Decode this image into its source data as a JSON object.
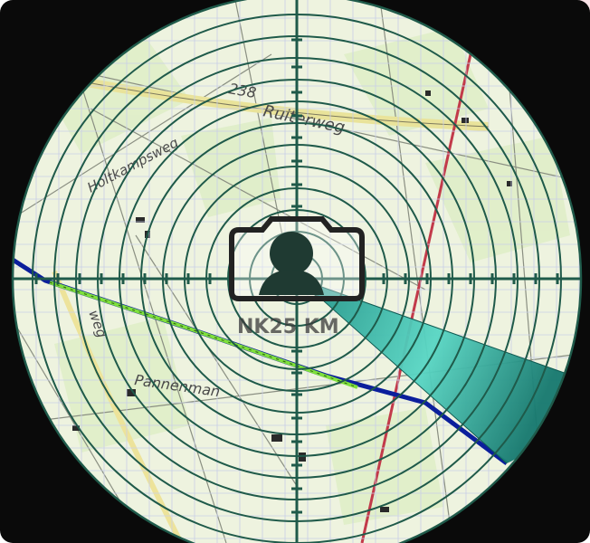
{
  "map": {
    "labels": {
      "road_number": "238",
      "street_top": "Ruiterweg",
      "street_left": "Holtkampsweg",
      "street_lower_left": "weg",
      "place": "Pannenman"
    },
    "stamp_text": "NK25 KM",
    "rings_visible": 12,
    "colors": {
      "background": "#0a0a0a",
      "map_base": "#eef3df",
      "grid": "#c9cfe8",
      "reticle": "#1f5a4a",
      "sweep_cone": "#2aa89a",
      "route_main": "#0b1f9c",
      "route_highlight": "#7fe03c",
      "railway": "#c23a4a"
    },
    "icons": {
      "center": "user-camera-icon",
      "sweep": "radar-sweep-cone"
    }
  }
}
